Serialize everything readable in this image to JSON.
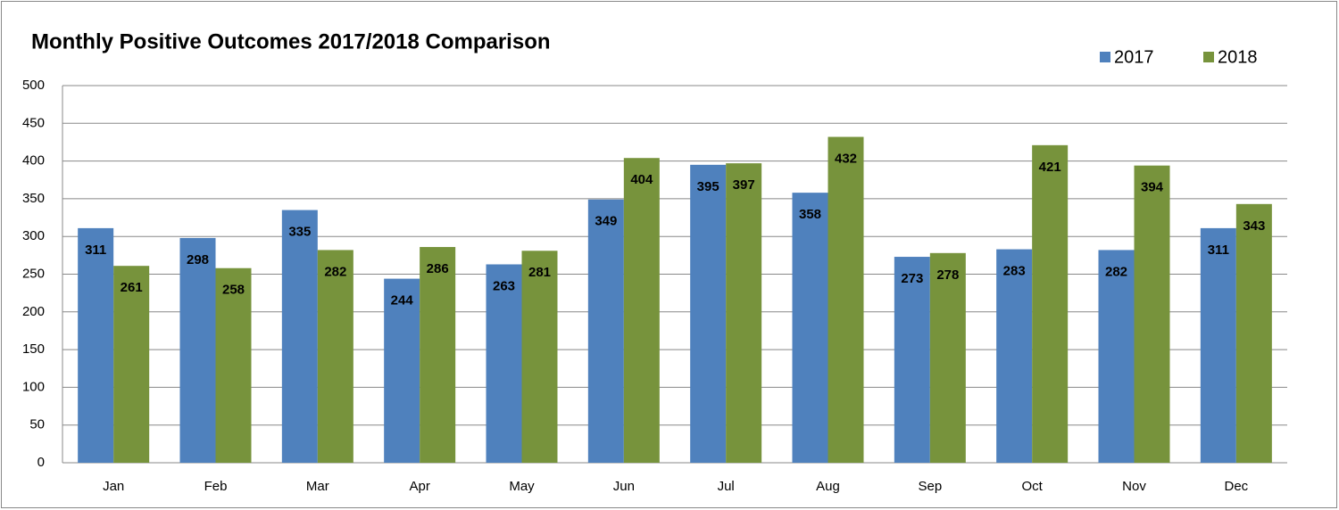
{
  "chart_data": {
    "type": "bar",
    "title": "Monthly Positive Outcomes 2017/2018 Comparison",
    "categories": [
      "Jan",
      "Feb",
      "Mar",
      "Apr",
      "May",
      "Jun",
      "Jul",
      "Aug",
      "Sep",
      "Oct",
      "Nov",
      "Dec"
    ],
    "series": [
      {
        "name": "2017",
        "color": "#4f81bd",
        "values": [
          311,
          298,
          335,
          244,
          263,
          349,
          395,
          358,
          273,
          283,
          282,
          311
        ]
      },
      {
        "name": "2018",
        "color": "#77933c",
        "values": [
          261,
          258,
          282,
          286,
          281,
          404,
          397,
          432,
          278,
          421,
          394,
          343
        ]
      }
    ],
    "ylim": [
      0,
      500
    ],
    "yticks": [
      0,
      50,
      100,
      150,
      200,
      250,
      300,
      350,
      400,
      450,
      500
    ],
    "grid": true,
    "legend": "top-right"
  }
}
